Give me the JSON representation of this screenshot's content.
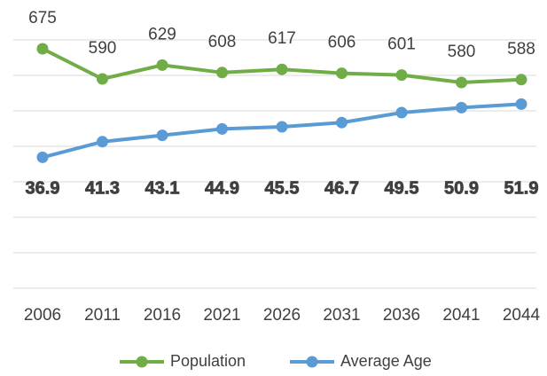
{
  "chart_data": {
    "type": "line",
    "categories": [
      "2006",
      "2011",
      "2016",
      "2021",
      "2026",
      "2031",
      "2036",
      "2041",
      "2044"
    ],
    "series": [
      {
        "name": "Population",
        "color": "#70ad47",
        "values": [
          675,
          590,
          629,
          608,
          617,
          606,
          601,
          580,
          588
        ]
      },
      {
        "name": "Average Age",
        "color": "#5b9bd5",
        "axis": "y2",
        "values": [
          36.9,
          41.3,
          43.1,
          44.9,
          45.5,
          46.7,
          49.5,
          50.9,
          51.9
        ]
      }
    ],
    "ylim": [
      0,
      700
    ],
    "yticks": [
      0,
      100,
      200,
      300,
      400,
      500,
      600,
      700
    ],
    "y2lim": [
      0,
      70
    ],
    "grid": true,
    "legend": "bottom"
  }
}
